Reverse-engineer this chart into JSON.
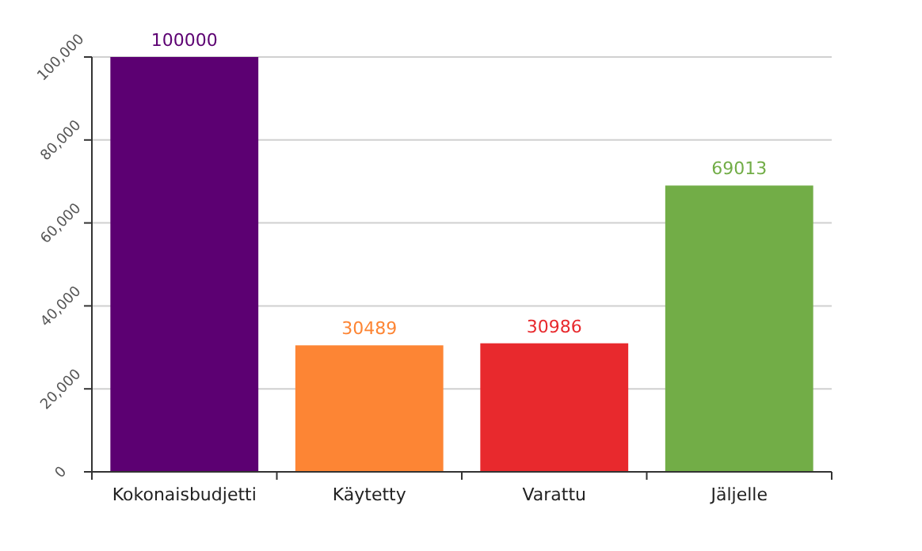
{
  "chart_data": {
    "type": "bar",
    "categories": [
      "Kokonaisbudjetti",
      "Käytetty",
      "Varattu",
      "Jäljelle"
    ],
    "values": [
      100000,
      30489,
      30986,
      69013
    ],
    "colors": [
      "#5c0072",
      "#fd8534",
      "#e8292d",
      "#72ad47"
    ],
    "ylim": [
      0,
      100000
    ],
    "yticks": [
      {
        "value": 0,
        "label": "0"
      },
      {
        "value": 20000,
        "label": "20,000"
      },
      {
        "value": 40000,
        "label": "40,000"
      },
      {
        "value": 60000,
        "label": "60,000"
      },
      {
        "value": 80000,
        "label": "80,000"
      },
      {
        "value": 100000,
        "label": "100,000"
      }
    ],
    "grid": "y",
    "data_labels": true
  }
}
